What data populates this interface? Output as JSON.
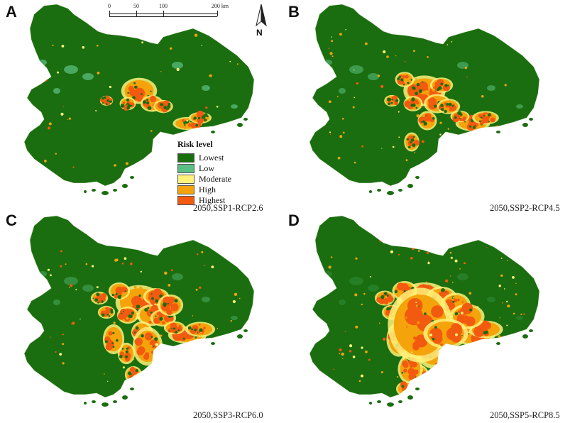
{
  "map": {
    "panels": [
      {
        "id": "A",
        "caption": "2050,SSP1-RCP2.6",
        "urban_extent": 0.25
      },
      {
        "id": "B",
        "caption": "2050,SSP2-RCP4.5",
        "urban_extent": 0.5
      },
      {
        "id": "C",
        "caption": "2050,SSP3-RCP6.0",
        "urban_extent": 0.7
      },
      {
        "id": "D",
        "caption": "2050,SSP5-RCP8.5",
        "urban_extent": 1.0
      }
    ],
    "scale_bar": {
      "labels": [
        "0",
        "50",
        "100",
        "200 km"
      ]
    },
    "north_arrow": {
      "label": "N"
    },
    "legend": {
      "title": "Risk level",
      "items": [
        {
          "label": "Lowest",
          "color": "#1a6e0f"
        },
        {
          "label": "Low",
          "color": "#5bbf83"
        },
        {
          "label": "Moderate",
          "color": "#fff27a"
        },
        {
          "label": "High",
          "color": "#f5a30a"
        },
        {
          "label": "Highest",
          "color": "#f25a10"
        }
      ]
    }
  }
}
